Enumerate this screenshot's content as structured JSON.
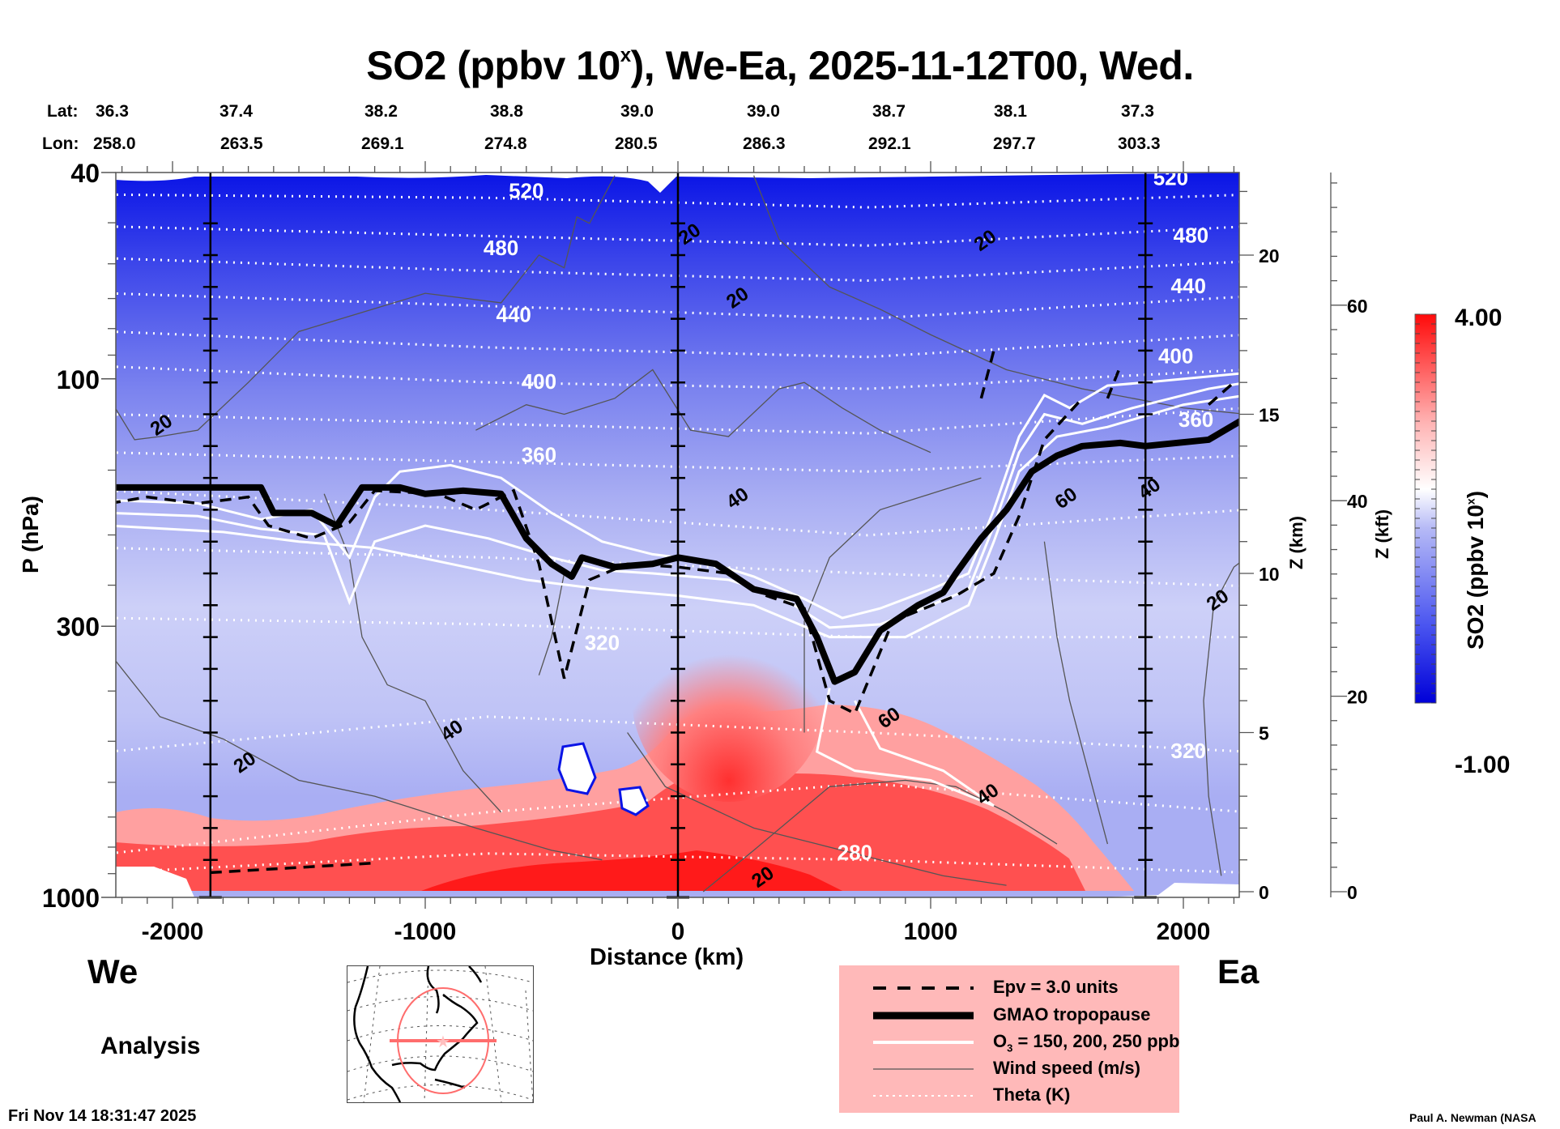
{
  "chart_data": {
    "type": "heatmap",
    "title": "SO2 (ppbv 10^x), We-Ea, 2025-11-12T00, Wed.",
    "title_main": "SO2 (ppbv 10",
    "title_sup": "x",
    "title_rest": "), We-Ea, 2025-11-12T00, Wed.",
    "xlabel": "Distance (km)",
    "ylabel": "P (hPa)",
    "y2label": "Z (km)",
    "y3label": "Z (kft)",
    "colorbar_label": "SO2 (ppbv 10^x)",
    "colorbar_label_main": "SO2 (ppbv 10",
    "colorbar_label_sup": "x",
    "colorbar_label_end": ")",
    "xlim": [
      -2250,
      2250
    ],
    "ylim_hpa": [
      1000,
      40
    ],
    "zlim_km": [
      0,
      22.5
    ],
    "x_ticks": [
      -2000,
      -1000,
      0,
      1000,
      2000
    ],
    "x_tick_labels": [
      "-2000",
      "-1000",
      "0",
      "1000",
      "2000"
    ],
    "p_ticks": [
      40,
      100,
      300,
      1000
    ],
    "p_tick_labels": [
      "40",
      "100",
      "300",
      "1000"
    ],
    "z_km_ticks": [
      0,
      5,
      10,
      15,
      20
    ],
    "z_km_tick_labels": [
      "0",
      "5",
      "10",
      "15",
      "20"
    ],
    "z_kft_ticks": [
      0,
      20,
      40,
      60
    ],
    "z_kft_tick_labels": [
      "0",
      "20",
      "40",
      "60"
    ],
    "colorbar_range": [
      -1.0,
      4.0
    ],
    "colorbar_min_label": "-1.00",
    "colorbar_max_label": "4.00",
    "colorbar_colors": [
      "#0000e0",
      "#ffffff",
      "#ff0000"
    ],
    "lat_label": "Lat:",
    "lon_label": "Lon:",
    "lat": [
      "36.3",
      "37.4",
      "38.2",
      "38.8",
      "39.0",
      "39.0",
      "38.7",
      "38.1",
      "37.3"
    ],
    "lon": [
      "258.0",
      "263.5",
      "269.1",
      "274.8",
      "280.5",
      "286.3",
      "292.1",
      "297.7",
      "303.3"
    ],
    "vertical_marker_lines_km": [
      -1850,
      0,
      1850
    ],
    "theta_levels_K": [
      280,
      320,
      360,
      400,
      440,
      480,
      520
    ],
    "theta_labels": [
      {
        "text": "520",
        "x_km": -600,
        "z_km": 21.8
      },
      {
        "text": "480",
        "x_km": -700,
        "z_km": 20.0
      },
      {
        "text": "440",
        "x_km": -650,
        "z_km": 17.9
      },
      {
        "text": "400",
        "x_km": -550,
        "z_km": 15.8
      },
      {
        "text": "360",
        "x_km": -550,
        "z_km": 13.5
      },
      {
        "text": "320",
        "x_km": -300,
        "z_km": 7.6
      },
      {
        "text": "280",
        "x_km": 700,
        "z_km": 1.0
      },
      {
        "text": "520",
        "x_km": 1950,
        "z_km": 22.2
      },
      {
        "text": "480",
        "x_km": 2030,
        "z_km": 20.4
      },
      {
        "text": "440",
        "x_km": 2020,
        "z_km": 18.8
      },
      {
        "text": "400",
        "x_km": 1970,
        "z_km": 16.6
      },
      {
        "text": "360",
        "x_km": 2050,
        "z_km": 14.6
      },
      {
        "text": "320",
        "x_km": 2020,
        "z_km": 4.2
      }
    ],
    "wind_labels": [
      {
        "text": "20",
        "x_km": -2030,
        "z_km": 14.5
      },
      {
        "text": "20",
        "x_km": 60,
        "z_km": 20.5
      },
      {
        "text": "20",
        "x_km": 250,
        "z_km": 18.5
      },
      {
        "text": "20",
        "x_km": 1230,
        "z_km": 20.3
      },
      {
        "text": "40",
        "x_km": 250,
        "z_km": 12.2
      },
      {
        "text": "60",
        "x_km": 1550,
        "z_km": 12.2
      },
      {
        "text": "40",
        "x_km": 1880,
        "z_km": 12.5
      },
      {
        "text": "20",
        "x_km": 2150,
        "z_km": 9.0
      },
      {
        "text": "40",
        "x_km": -880,
        "z_km": 4.9
      },
      {
        "text": "20",
        "x_km": -1700,
        "z_km": 3.9
      },
      {
        "text": "60",
        "x_km": 850,
        "z_km": 5.3
      },
      {
        "text": "40",
        "x_km": 1240,
        "z_km": 2.9
      },
      {
        "text": "20",
        "x_km": 350,
        "z_km": 0.3
      }
    ],
    "tropopause_km": [
      [
        -2250,
        12.7
      ],
      [
        -1650,
        12.7
      ],
      [
        -1600,
        11.9
      ],
      [
        -1450,
        11.9
      ],
      [
        -1350,
        11.5
      ],
      [
        -1250,
        12.7
      ],
      [
        -1100,
        12.7
      ],
      [
        -1000,
        12.5
      ],
      [
        -850,
        12.6
      ],
      [
        -700,
        12.5
      ],
      [
        -600,
        11.1
      ],
      [
        -500,
        10.3
      ],
      [
        -420,
        9.9
      ],
      [
        -380,
        10.5
      ],
      [
        -250,
        10.2
      ],
      [
        -100,
        10.3
      ],
      [
        0,
        10.5
      ],
      [
        150,
        10.3
      ],
      [
        300,
        9.5
      ],
      [
        470,
        9.2
      ],
      [
        550,
        8.0
      ],
      [
        620,
        6.6
      ],
      [
        700,
        6.9
      ],
      [
        800,
        8.2
      ],
      [
        950,
        9.0
      ],
      [
        1050,
        9.4
      ],
      [
        1100,
        10.0
      ],
      [
        1200,
        11.1
      ],
      [
        1300,
        12.0
      ],
      [
        1400,
        13.2
      ],
      [
        1500,
        13.7
      ],
      [
        1600,
        14.0
      ],
      [
        1750,
        14.1
      ],
      [
        1850,
        14.0
      ],
      [
        2100,
        14.2
      ],
      [
        2250,
        14.9
      ]
    ],
    "epv_3pvu_km": [
      [
        -2250,
        12.2
      ],
      [
        -2100,
        12.4
      ],
      [
        -1900,
        12.2
      ],
      [
        -1700,
        12.4
      ],
      [
        -1620,
        11.5
      ],
      [
        -1450,
        11.1
      ],
      [
        -1300,
        11.6
      ],
      [
        -1200,
        12.6
      ],
      [
        -950,
        12.5
      ],
      [
        -800,
        12.0
      ],
      [
        -650,
        12.6
      ],
      [
        -550,
        10.3
      ],
      [
        -450,
        6.7
      ],
      [
        -350,
        9.8
      ],
      [
        -200,
        10.3
      ],
      [
        0,
        10.2
      ],
      [
        200,
        10.0
      ],
      [
        350,
        9.3
      ],
      [
        500,
        8.9
      ],
      [
        600,
        6.0
      ],
      [
        700,
        5.6
      ],
      [
        850,
        8.5
      ],
      [
        1100,
        9.3
      ],
      [
        1250,
        10.0
      ],
      [
        1350,
        11.8
      ],
      [
        1450,
        14.2
      ],
      [
        1600,
        15.5
      ]
    ],
    "legend": [
      {
        "label": "Epv = 3.0 units",
        "style": "dashed-black"
      },
      {
        "label": "GMAO tropopause",
        "style": "thick-black"
      },
      {
        "label_main": "O",
        "label_sub": "3",
        "label_rest": " = 150, 200, 250 ppb",
        "label": "O3 = 150, 200, 250 ppb",
        "style": "white"
      },
      {
        "label": "Wind speed (m/s)",
        "style": "thin-gray"
      },
      {
        "label": "Theta (K)",
        "style": "dotted-white"
      }
    ],
    "legend_placement": "bottom-center",
    "background_field_description": "SO2 log10 mixing ratio: deep blue (about -1) aloft near 40 hPa, fading to pale blue/white in the upper troposphere, red (about 3-4) in the boundary layer below ~850 hPa, with a red plume rising to ~400 hPa near 0-700 km"
  },
  "annotations": {
    "west_label": "We",
    "east_label": "Ea",
    "analysis_label": "Analysis",
    "timestamp": "Fri Nov 14 18:31:47 2025",
    "credit": "Paul A. Newman (NASA"
  },
  "colors": {
    "deep_blue": "#0a14e6",
    "mid_blue": "#7b83ef",
    "pale_blue": "#c8ccf6",
    "red": "#ff1a1a",
    "legend_bg": "#ffb9b9",
    "map_track": "#ff6d6d"
  }
}
